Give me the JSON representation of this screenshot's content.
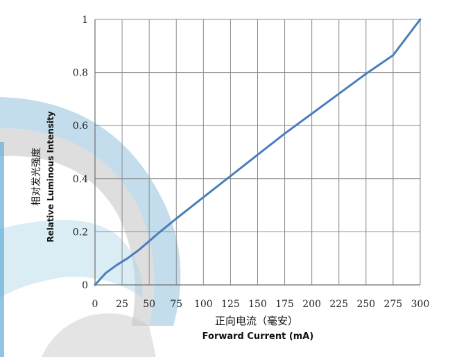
{
  "chart_data": {
    "type": "line",
    "xlabel": "Forward Current (mA)",
    "xlabel_cn": "正向电流（毫安）",
    "ylabel": "Relative Luminous Intensity",
    "ylabel_cn": "相对发光强度",
    "xlim": [
      0,
      300
    ],
    "ylim": [
      0,
      1
    ],
    "x_ticks": [
      "0",
      "25",
      "50",
      "75",
      "100",
      "125",
      "150",
      "175",
      "200",
      "225",
      "250",
      "275",
      "300"
    ],
    "y_ticks": [
      "0",
      "0.2",
      "0.4",
      "0.6",
      "0.8",
      "1"
    ],
    "grid": true,
    "legend": "none",
    "line_color": "#4a7ebb",
    "series": [
      {
        "x": [
          0,
          10,
          20,
          30,
          40,
          50,
          60,
          75,
          100,
          125,
          150,
          175,
          200,
          225,
          250,
          275,
          300
        ],
        "values": [
          0,
          0.045,
          0.075,
          0.1,
          0.13,
          0.165,
          0.2,
          0.25,
          0.33,
          0.41,
          0.49,
          0.57,
          0.645,
          0.72,
          0.795,
          0.865,
          1.0
        ]
      }
    ]
  }
}
